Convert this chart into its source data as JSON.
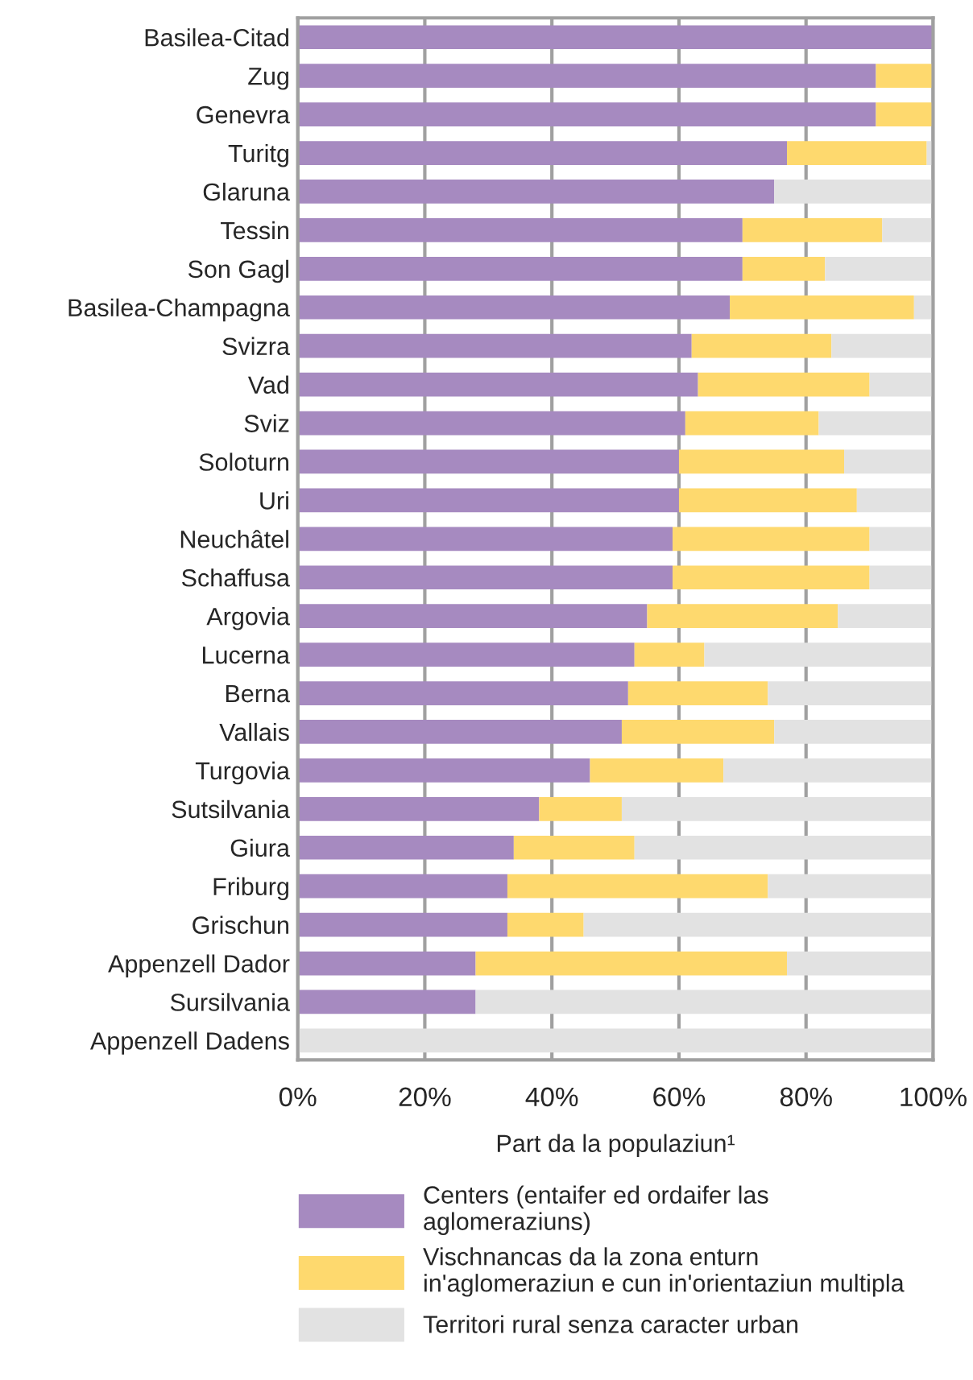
{
  "chart_data": {
    "type": "bar",
    "orientation": "horizontal",
    "stacked": true,
    "xlabel": "Part da la populaziun¹",
    "categories": [
      "Basilea-Citad",
      "Zug",
      "Genevra",
      "Turitg",
      "Glaruna",
      "Tessin",
      "Son Gagl",
      "Basilea-Champagna",
      "Svizra",
      "Vad",
      "Sviz",
      "Soloturn",
      "Uri",
      "Neuchâtel",
      "Schaffusa",
      "Argovia",
      "Lucerna",
      "Berna",
      "Vallais",
      "Turgovia",
      "Sutsilvania",
      "Giura",
      "Friburg",
      "Grischun",
      "Appenzell Dador",
      "Sursilvania",
      "Appenzell Dadens"
    ],
    "series": [
      {
        "name": "Centers (entaifer ed ordaifer las\naglomeraziuns)",
        "color": "#a68ac0",
        "values": [
          100,
          91,
          91,
          77,
          75,
          70,
          70,
          68,
          62,
          63,
          61,
          60,
          60,
          59,
          59,
          55,
          53,
          52,
          51,
          46,
          38,
          34,
          33,
          33,
          28,
          28,
          0
        ]
      },
      {
        "name": "Vischnancas da la zona enturn\nin'aglomeraziun e cun in'orientaziun multipla",
        "color": "#fed96e",
        "values": [
          0,
          9,
          9,
          22,
          0,
          22,
          13,
          29,
          22,
          27,
          21,
          26,
          28,
          31,
          31,
          30,
          11,
          22,
          24,
          21,
          13,
          19,
          41,
          12,
          49,
          0,
          0
        ]
      },
      {
        "name": "Territori rural senza caracter urban",
        "color": "#e2e2e2",
        "values": [
          0,
          0,
          0,
          1,
          25,
          8,
          17,
          3,
          16,
          10,
          18,
          14,
          12,
          10,
          10,
          15,
          36,
          26,
          25,
          33,
          49,
          47,
          26,
          55,
          23,
          72,
          100
        ]
      }
    ],
    "xlim": [
      0,
      100
    ],
    "xticks": [
      {
        "value": 0,
        "label": "0%"
      },
      {
        "value": 20,
        "label": "20%"
      },
      {
        "value": 40,
        "label": "40%"
      },
      {
        "value": 60,
        "label": "60%"
      },
      {
        "value": 80,
        "label": "80%"
      },
      {
        "value": 100,
        "label": "100%"
      }
    ],
    "grid": "x",
    "legend": "bottom"
  }
}
